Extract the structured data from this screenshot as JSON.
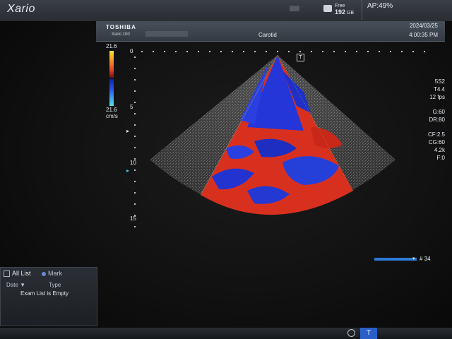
{
  "header": {
    "logo": "Xario",
    "disk_label": "Free",
    "disk_value": "192",
    "disk_unit": "GB",
    "ap": "AP:49%"
  },
  "info": {
    "brand": "TOSHIBA",
    "model": "Xario 100",
    "preset": "Carotid",
    "date": "2024/03/25",
    "time": "4:00:35 PM"
  },
  "color_scale": {
    "top": "21.6",
    "bottom": "21.6",
    "unit": "cm/s"
  },
  "depth_labels": [
    "0",
    "5",
    "10",
    "15"
  ],
  "params": {
    "probe": "5S2",
    "tissue": "T4.4",
    "frame_rate": "12 fps",
    "gain": "G:60",
    "dynamic_range": "DR:80",
    "color_freq": "CF:2.5",
    "color_gain": "CG:60",
    "prf": "4.2k",
    "filter": "F:0"
  },
  "cine": {
    "position": 0.95,
    "frame": "# 34"
  },
  "exam_list": {
    "tab_all": "All List",
    "tab_mark": "Mark",
    "col_date": "Date ▼",
    "col_type": "Type",
    "empty_msg": "Exam List is Empty"
  },
  "footer": {
    "tcm": "T"
  }
}
